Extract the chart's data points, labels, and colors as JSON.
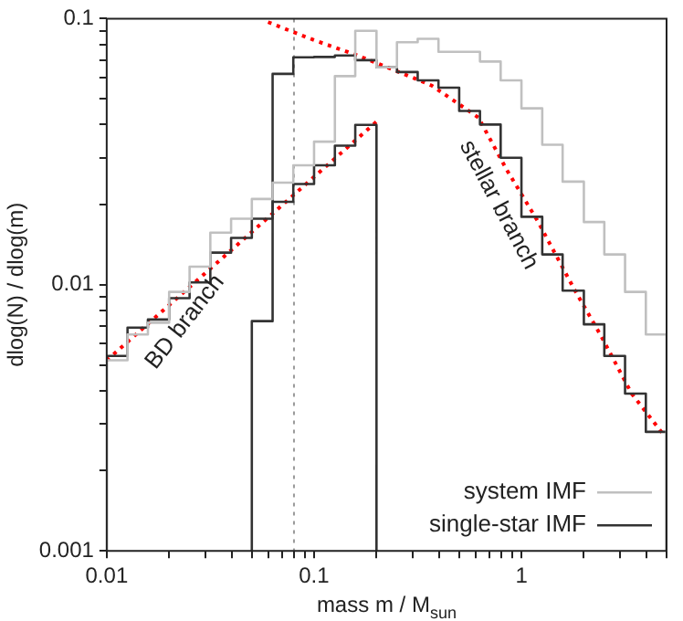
{
  "chart_data": {
    "type": "histogram",
    "xlabel": "mass m / M$_{sun}$",
    "ylabel": "dlog(N) / dlog(m)",
    "log": "xy",
    "grid": false,
    "legend": "bottom right",
    "bins": [
      0.01,
      0.0126,
      0.0158,
      0.02,
      0.0251,
      0.0316,
      0.0398,
      0.0501,
      0.0631,
      0.0794,
      0.1,
      0.126,
      0.158,
      0.2,
      0.251,
      0.316,
      0.398,
      0.501,
      0.631,
      0.794,
      1,
      1.26,
      1.58,
      2,
      2.51,
      3.16,
      3.98,
      5.01
    ],
    "xlim": [
      0.01,
      5.01
    ],
    "ylim": [
      0.001,
      0.1
    ],
    "xticks": [
      0.01,
      {
        "value": 0.02,
        "label": null
      },
      {
        "value": 0.03,
        "label": null
      },
      {
        "value": 0.04,
        "label": null
      },
      {
        "value": 0.05,
        "label": null
      },
      {
        "value": 0.06,
        "label": null
      },
      {
        "value": 0.07,
        "label": null
      },
      {
        "value": 0.08,
        "label": null
      },
      {
        "value": 0.09,
        "label": null
      },
      0.1,
      {
        "value": 0.2,
        "label": null
      },
      {
        "value": 0.3,
        "label": null
      },
      {
        "value": 0.4,
        "label": null
      },
      {
        "value": 0.5,
        "label": null
      },
      {
        "value": 0.6,
        "label": null
      },
      {
        "value": 0.7,
        "label": null
      },
      {
        "value": 0.8,
        "label": null
      },
      {
        "value": 0.9,
        "label": null
      },
      1,
      {
        "value": 2,
        "label": null
      },
      {
        "value": 3,
        "label": null
      },
      {
        "value": 4,
        "label": null
      },
      {
        "value": 5,
        "label": null
      }
    ],
    "yticks": [
      0.001,
      {
        "value": 0.002,
        "label": null
      },
      {
        "value": 0.003,
        "label": null
      },
      {
        "value": 0.004,
        "label": null
      },
      {
        "value": 0.005,
        "label": null
      },
      {
        "value": 0.006,
        "label": null
      },
      {
        "value": 0.007,
        "label": null
      },
      {
        "value": 0.008,
        "label": null
      },
      {
        "value": 0.009,
        "label": null
      },
      0.01,
      {
        "value": 0.02,
        "label": null
      },
      {
        "value": 0.03,
        "label": null
      },
      {
        "value": 0.04,
        "label": null
      },
      {
        "value": 0.05,
        "label": null
      },
      {
        "value": 0.06,
        "label": null
      },
      {
        "value": 0.07,
        "label": null
      },
      {
        "value": 0.08,
        "label": null
      },
      {
        "value": 0.09,
        "label": null
      },
      0.1
    ],
    "series": [
      {
        "name": "system IMF",
        "color": "#c0c0c0",
        "values": [
          0.0052,
          0.0065,
          0.0072,
          0.0094,
          0.0117,
          0.0157,
          0.0177,
          0.021,
          0.0242,
          0.0281,
          0.0345,
          0.0608,
          0.09,
          0.0656,
          0.0815,
          0.084,
          0.075,
          0.075,
          0.069,
          0.0586,
          0.046,
          0.0336,
          0.0244,
          0.0172,
          0.013,
          0.0094,
          0.0065
        ]
      },
      {
        "name": "single-star IMF",
        "color": "#333333",
        "bins": [
          0.0501,
          0.0631,
          0.0794,
          0.1,
          0.126,
          0.158,
          0.2,
          0.251,
          0.316,
          0.398,
          0.501,
          0.631,
          0.794,
          1,
          1.26,
          1.58,
          2,
          2.51,
          3.16,
          3.98,
          5.01
        ],
        "values": [
          0.0073,
          0.062,
          0.0716,
          0.0718,
          0.0727,
          0.0698,
          0.0656,
          0.063,
          0.0586,
          0.055,
          0.045,
          0.04,
          0.03,
          0.018,
          0.013,
          0.0095,
          0.0071,
          0.0054,
          0.0039,
          0.0028
        ]
      },
      {
        "color": "#333333",
        "bins": [
          0.01,
          0.0126,
          0.0158,
          0.02,
          0.0251,
          0.0316,
          0.0398,
          0.0501,
          0.0631,
          0.0794,
          0.1,
          0.126,
          0.158,
          0.2
        ],
        "values": [
          0.0054,
          0.0069,
          0.0074,
          0.0089,
          0.0102,
          0.0132,
          0.015,
          0.0177,
          0.0205,
          0.0239,
          0.0281,
          0.0333,
          0.0399
        ]
      },
      {
        "type": "line",
        "color": "#ff0000",
        "line_style": "dotted",
        "marker": "none",
        "x": [
          0.01,
          0.2
        ],
        "values": [
          0.0052,
          0.041
        ]
      },
      {
        "type": "line",
        "color": "#ff0000",
        "line_style": "dotted",
        "marker": "none",
        "x": [
          0.06,
          0.1,
          0.16,
          0.3,
          0.37,
          0.62,
          0.85,
          1.2,
          1.8,
          2.4,
          3.4,
          4.9
        ],
        "values": [
          0.097,
          0.083,
          0.073,
          0.06,
          0.056,
          0.0425,
          0.027,
          0.0173,
          0.0096,
          0.0065,
          0.0039,
          0.0027
        ]
      }
    ],
    "ref_lines": [
      {
        "axis": "x",
        "value": 0.08,
        "color": "#999999",
        "line_style": "dotted"
      }
    ],
    "annotations": [
      "BD branch",
      "stellar branch"
    ]
  }
}
